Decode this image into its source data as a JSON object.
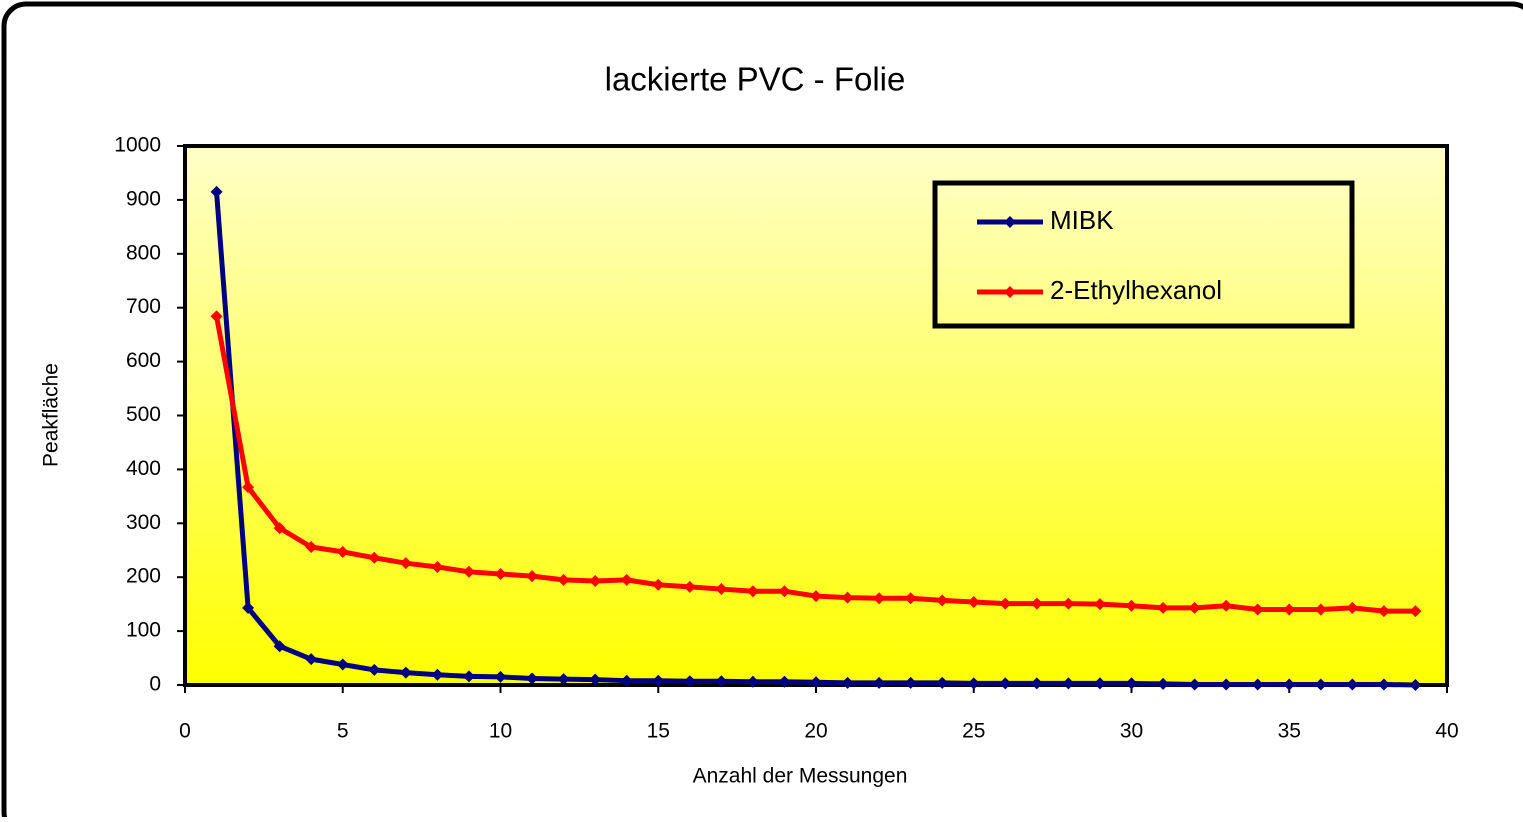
{
  "chart_data": {
    "type": "line",
    "title": "lackierte PVC - Folie",
    "x_label": "Anzahl der Messungen",
    "y_label": "Peakfläche",
    "x": [
      1,
      2,
      3,
      4,
      5,
      6,
      7,
      8,
      9,
      10,
      11,
      12,
      13,
      14,
      15,
      16,
      17,
      18,
      19,
      20,
      21,
      22,
      23,
      24,
      25,
      26,
      27,
      28,
      29,
      30,
      31,
      32,
      33,
      34,
      35,
      36,
      37,
      38,
      39
    ],
    "series": [
      {
        "name": "MIBK",
        "color": "#000080",
        "values": [
          915,
          143,
          72,
          48,
          38,
          28,
          23,
          19,
          16,
          15,
          12,
          11,
          10,
          8,
          8,
          7,
          7,
          6,
          6,
          5,
          4,
          4,
          4,
          4,
          3,
          3,
          3,
          3,
          3,
          3,
          2,
          1,
          1,
          1,
          1,
          1,
          1,
          1,
          0
        ]
      },
      {
        "name": "2-Ethylhexanol",
        "color": "#ff0000",
        "values": [
          684,
          367,
          291,
          256,
          247,
          236,
          226,
          219,
          210,
          206,
          202,
          195,
          193,
          195,
          186,
          182,
          178,
          174,
          174,
          165,
          162,
          161,
          161,
          157,
          154,
          151,
          151,
          151,
          150,
          147,
          143,
          143,
          147,
          140,
          140,
          140,
          143,
          137,
          137
        ]
      }
    ],
    "xlim": [
      0,
      40
    ],
    "xticks": [
      0,
      5,
      10,
      15,
      20,
      25,
      30,
      35,
      40
    ],
    "ylim": [
      0,
      1000
    ],
    "yticks": [
      0,
      100,
      200,
      300,
      400,
      500,
      600,
      700,
      800,
      900,
      1000
    ],
    "legend": "top-right"
  }
}
